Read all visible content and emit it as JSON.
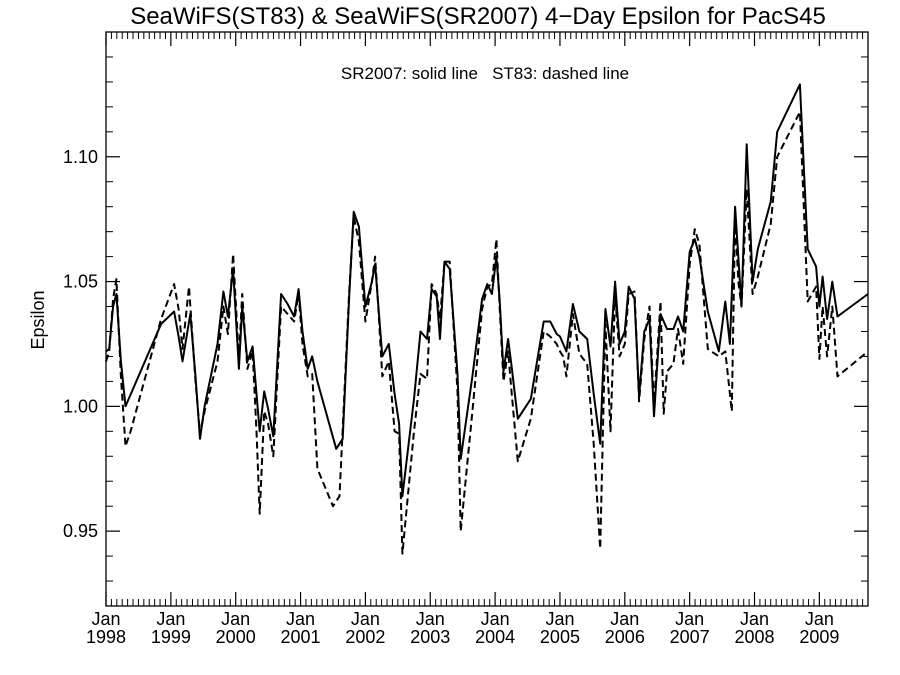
{
  "chart_data": {
    "type": "line",
    "title": "SeaWiFS(ST83) & SeaWiFS(SR2007) 4−Day Epsilon for PacS45",
    "annotation": "SR2007: solid line   ST83: dashed line",
    "xlabel": "",
    "ylabel": "Epsilon",
    "xlim": [
      1998.0,
      2009.75
    ],
    "ylim": [
      0.92,
      1.15
    ],
    "grid": false,
    "y_ticks": [
      {
        "value": 0.95,
        "label": "0.95"
      },
      {
        "value": 1.0,
        "label": "1.00"
      },
      {
        "value": 1.05,
        "label": "1.05"
      },
      {
        "value": 1.1,
        "label": "1.10"
      }
    ],
    "x_ticks": [
      {
        "value": 1998,
        "month": "Jan",
        "year": "1998"
      },
      {
        "value": 1999,
        "month": "Jan",
        "year": "1999"
      },
      {
        "value": 2000,
        "month": "Jan",
        "year": "2000"
      },
      {
        "value": 2001,
        "month": "Jan",
        "year": "2001"
      },
      {
        "value": 2002,
        "month": "Jan",
        "year": "2002"
      },
      {
        "value": 2003,
        "month": "Jan",
        "year": "2003"
      },
      {
        "value": 2004,
        "month": "Jan",
        "year": "2004"
      },
      {
        "value": 2005,
        "month": "Jan",
        "year": "2005"
      },
      {
        "value": 2006,
        "month": "Jan",
        "year": "2006"
      },
      {
        "value": 2007,
        "month": "Jan",
        "year": "2007"
      },
      {
        "value": 2008,
        "month": "Jan",
        "year": "2008"
      },
      {
        "value": 2009,
        "month": "Jan",
        "year": "2009"
      }
    ],
    "series": [
      {
        "name": "SR2007",
        "style": "solid",
        "color": "#000000",
        "points": [
          [
            1998.0,
            1.022
          ],
          [
            1998.05,
            1.023
          ],
          [
            1998.11,
            1.04
          ],
          [
            1998.16,
            1.045
          ],
          [
            1998.23,
            1.018
          ],
          [
            1998.3,
            1.0
          ],
          [
            1998.85,
            1.033
          ],
          [
            1999.05,
            1.038
          ],
          [
            1999.12,
            1.028
          ],
          [
            1999.18,
            1.018
          ],
          [
            1999.3,
            1.037
          ],
          [
            1999.38,
            1.012
          ],
          [
            1999.45,
            0.987
          ],
          [
            1999.52,
            1.0
          ],
          [
            1999.72,
            1.025
          ],
          [
            1999.81,
            1.046
          ],
          [
            1999.88,
            1.036
          ],
          [
            1999.96,
            1.055
          ],
          [
            2000.05,
            1.015
          ],
          [
            2000.1,
            1.04
          ],
          [
            2000.18,
            1.018
          ],
          [
            2000.26,
            1.024
          ],
          [
            2000.32,
            1.005
          ],
          [
            2000.37,
            0.99
          ],
          [
            2000.44,
            1.006
          ],
          [
            2000.5,
            0.999
          ],
          [
            2000.58,
            0.988
          ],
          [
            2000.7,
            1.045
          ],
          [
            2000.8,
            1.041
          ],
          [
            2000.9,
            1.036
          ],
          [
            2000.97,
            1.047
          ],
          [
            2001.03,
            1.03
          ],
          [
            2001.11,
            1.015
          ],
          [
            2001.18,
            1.02
          ],
          [
            2001.26,
            1.01
          ],
          [
            2001.55,
            0.983
          ],
          [
            2001.65,
            0.987
          ],
          [
            2001.75,
            1.044
          ],
          [
            2001.82,
            1.078
          ],
          [
            2001.9,
            1.072
          ],
          [
            2002.0,
            1.04
          ],
          [
            2002.1,
            1.05
          ],
          [
            2002.15,
            1.057
          ],
          [
            2002.2,
            1.04
          ],
          [
            2002.26,
            1.02
          ],
          [
            2002.36,
            1.025
          ],
          [
            2002.45,
            1.005
          ],
          [
            2002.52,
            0.993
          ],
          [
            2002.57,
            0.964
          ],
          [
            2002.75,
            1.003
          ],
          [
            2002.85,
            1.03
          ],
          [
            2002.95,
            1.027
          ],
          [
            2003.02,
            1.047
          ],
          [
            2003.1,
            1.044
          ],
          [
            2003.15,
            1.027
          ],
          [
            2003.22,
            1.058
          ],
          [
            2003.3,
            1.055
          ],
          [
            2003.42,
            1.013
          ],
          [
            2003.47,
            0.979
          ],
          [
            2003.65,
            1.012
          ],
          [
            2003.8,
            1.043
          ],
          [
            2003.88,
            1.049
          ],
          [
            2003.95,
            1.045
          ],
          [
            2004.02,
            1.06
          ],
          [
            2004.07,
            1.043
          ],
          [
            2004.13,
            1.014
          ],
          [
            2004.2,
            1.027
          ],
          [
            2004.25,
            1.017
          ],
          [
            2004.35,
            0.995
          ],
          [
            2004.55,
            1.003
          ],
          [
            2004.75,
            1.034
          ],
          [
            2004.85,
            1.034
          ],
          [
            2004.95,
            1.029
          ],
          [
            2005.0,
            1.028
          ],
          [
            2005.05,
            1.025
          ],
          [
            2005.1,
            1.022
          ],
          [
            2005.2,
            1.041
          ],
          [
            2005.3,
            1.03
          ],
          [
            2005.42,
            1.027
          ],
          [
            2005.52,
            1.005
          ],
          [
            2005.62,
            0.985
          ],
          [
            2005.7,
            1.039
          ],
          [
            2005.78,
            1.024
          ],
          [
            2005.85,
            1.05
          ],
          [
            2005.92,
            1.025
          ],
          [
            2006.0,
            1.03
          ],
          [
            2006.06,
            1.048
          ],
          [
            2006.15,
            1.043
          ],
          [
            2006.22,
            1.004
          ],
          [
            2006.3,
            1.03
          ],
          [
            2006.38,
            1.035
          ],
          [
            2006.45,
            0.996
          ],
          [
            2006.55,
            1.037
          ],
          [
            2006.65,
            1.031
          ],
          [
            2006.75,
            1.031
          ],
          [
            2006.82,
            1.036
          ],
          [
            2006.9,
            1.03
          ],
          [
            2007.0,
            1.062
          ],
          [
            2007.08,
            1.067
          ],
          [
            2007.15,
            1.06
          ],
          [
            2007.28,
            1.038
          ],
          [
            2007.45,
            1.022
          ],
          [
            2007.55,
            1.042
          ],
          [
            2007.62,
            1.025
          ],
          [
            2007.7,
            1.08
          ],
          [
            2007.75,
            1.06
          ],
          [
            2007.8,
            1.04
          ],
          [
            2007.88,
            1.105
          ],
          [
            2007.97,
            1.05
          ],
          [
            2008.05,
            1.063
          ],
          [
            2008.25,
            1.082
          ],
          [
            2008.35,
            1.11
          ],
          [
            2008.7,
            1.129
          ],
          [
            2008.82,
            1.063
          ],
          [
            2008.95,
            1.056
          ],
          [
            2009.0,
            1.04
          ],
          [
            2009.05,
            1.052
          ],
          [
            2009.12,
            1.035
          ],
          [
            2009.2,
            1.05
          ],
          [
            2009.28,
            1.036
          ],
          [
            2009.75,
            1.045
          ]
        ]
      },
      {
        "name": "ST83",
        "style": "dashed",
        "color": "#000000",
        "points": [
          [
            1998.0,
            1.018
          ],
          [
            1998.05,
            1.022
          ],
          [
            1998.11,
            1.043
          ],
          [
            1998.16,
            1.051
          ],
          [
            1998.23,
            1.012
          ],
          [
            1998.3,
            0.984
          ],
          [
            1998.38,
            0.99
          ],
          [
            1998.85,
            1.035
          ],
          [
            1999.05,
            1.049
          ],
          [
            1999.12,
            1.039
          ],
          [
            1999.18,
            1.023
          ],
          [
            1999.28,
            1.048
          ],
          [
            1999.38,
            1.01
          ],
          [
            1999.45,
            0.989
          ],
          [
            1999.52,
            0.998
          ],
          [
            1999.72,
            1.018
          ],
          [
            1999.81,
            1.04
          ],
          [
            1999.88,
            1.029
          ],
          [
            1999.96,
            1.061
          ],
          [
            2000.05,
            1.019
          ],
          [
            2000.1,
            1.045
          ],
          [
            2000.18,
            1.015
          ],
          [
            2000.26,
            1.022
          ],
          [
            2000.32,
            0.99
          ],
          [
            2000.37,
            0.957
          ],
          [
            2000.44,
            0.998
          ],
          [
            2000.5,
            0.993
          ],
          [
            2000.58,
            0.98
          ],
          [
            2000.7,
            1.04
          ],
          [
            2000.8,
            1.037
          ],
          [
            2000.9,
            1.034
          ],
          [
            2000.97,
            1.045
          ],
          [
            2001.03,
            1.025
          ],
          [
            2001.11,
            1.012
          ],
          [
            2001.18,
            1.013
          ],
          [
            2001.26,
            0.975
          ],
          [
            2001.5,
            0.96
          ],
          [
            2001.6,
            0.964
          ],
          [
            2001.75,
            1.046
          ],
          [
            2001.82,
            1.076
          ],
          [
            2001.9,
            1.066
          ],
          [
            2002.0,
            1.034
          ],
          [
            2002.1,
            1.05
          ],
          [
            2002.15,
            1.06
          ],
          [
            2002.2,
            1.039
          ],
          [
            2002.26,
            1.012
          ],
          [
            2002.36,
            1.018
          ],
          [
            2002.45,
            0.99
          ],
          [
            2002.52,
            0.989
          ],
          [
            2002.57,
            0.941
          ],
          [
            2002.75,
            0.99
          ],
          [
            2002.85,
            1.013
          ],
          [
            2002.95,
            1.011
          ],
          [
            2003.02,
            1.049
          ],
          [
            2003.1,
            1.045
          ],
          [
            2003.15,
            1.035
          ],
          [
            2003.22,
            1.058
          ],
          [
            2003.3,
            1.058
          ],
          [
            2003.42,
            1.006
          ],
          [
            2003.47,
            0.95
          ],
          [
            2003.65,
            0.998
          ],
          [
            2003.8,
            1.039
          ],
          [
            2003.88,
            1.048
          ],
          [
            2003.95,
            1.049
          ],
          [
            2004.02,
            1.067
          ],
          [
            2004.07,
            1.04
          ],
          [
            2004.13,
            1.01
          ],
          [
            2004.2,
            1.022
          ],
          [
            2004.25,
            1.007
          ],
          [
            2004.35,
            0.978
          ],
          [
            2004.55,
            0.995
          ],
          [
            2004.75,
            1.03
          ],
          [
            2004.85,
            1.028
          ],
          [
            2004.95,
            1.025
          ],
          [
            2005.0,
            1.022
          ],
          [
            2005.05,
            1.02
          ],
          [
            2005.1,
            1.012
          ],
          [
            2005.2,
            1.037
          ],
          [
            2005.3,
            1.021
          ],
          [
            2005.42,
            1.017
          ],
          [
            2005.52,
            0.985
          ],
          [
            2005.62,
            0.943
          ],
          [
            2005.7,
            1.033
          ],
          [
            2005.78,
            0.99
          ],
          [
            2005.85,
            1.045
          ],
          [
            2005.92,
            1.02
          ],
          [
            2006.0,
            1.025
          ],
          [
            2006.06,
            1.045
          ],
          [
            2006.15,
            1.046
          ],
          [
            2006.22,
            1.002
          ],
          [
            2006.3,
            1.027
          ],
          [
            2006.38,
            1.04
          ],
          [
            2006.45,
            1.0
          ],
          [
            2006.55,
            1.042
          ],
          [
            2006.6,
            0.997
          ],
          [
            2006.65,
            1.014
          ],
          [
            2006.75,
            1.017
          ],
          [
            2006.82,
            1.031
          ],
          [
            2006.9,
            1.017
          ],
          [
            2007.0,
            1.057
          ],
          [
            2007.08,
            1.071
          ],
          [
            2007.15,
            1.065
          ],
          [
            2007.28,
            1.023
          ],
          [
            2007.45,
            1.02
          ],
          [
            2007.55,
            1.022
          ],
          [
            2007.65,
            0.998
          ],
          [
            2007.7,
            1.077
          ],
          [
            2007.75,
            1.05
          ],
          [
            2007.8,
            1.04
          ],
          [
            2007.88,
            1.087
          ],
          [
            2007.97,
            1.045
          ],
          [
            2008.05,
            1.052
          ],
          [
            2008.25,
            1.073
          ],
          [
            2008.35,
            1.1
          ],
          [
            2008.7,
            1.118
          ],
          [
            2008.82,
            1.042
          ],
          [
            2008.95,
            1.048
          ],
          [
            2009.0,
            1.019
          ],
          [
            2009.05,
            1.04
          ],
          [
            2009.12,
            1.02
          ],
          [
            2009.2,
            1.04
          ],
          [
            2009.28,
            1.012
          ],
          [
            2009.75,
            1.022
          ]
        ]
      }
    ]
  }
}
